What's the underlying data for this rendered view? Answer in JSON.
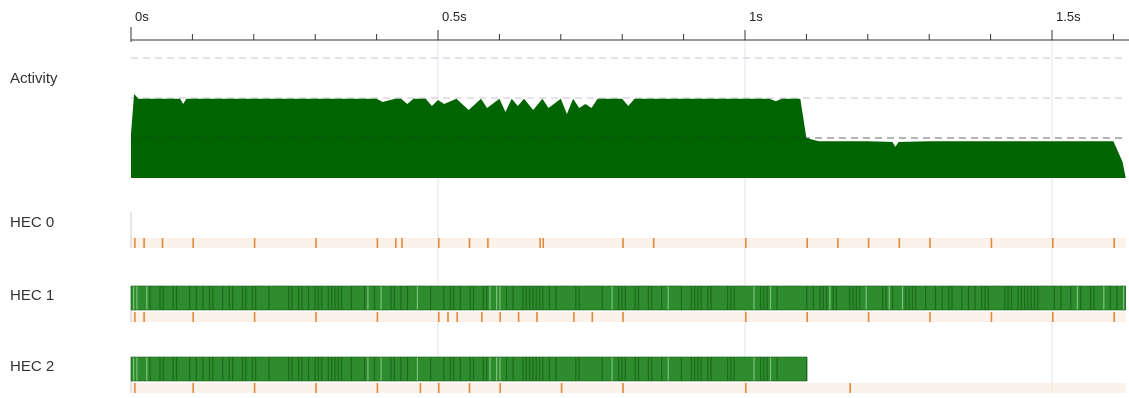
{
  "ruler": {
    "ticks": [
      {
        "label": "0s",
        "t": 0.0
      },
      {
        "label": "0.5s",
        "t": 0.5
      },
      {
        "label": "1s",
        "t": 1.0
      },
      {
        "label": "1.5s",
        "t": 1.5
      }
    ],
    "minor_step_s": 0.1,
    "range_s": [
      0,
      1.62
    ]
  },
  "rows": {
    "activity": {
      "label": "Activity"
    },
    "hec0": {
      "label": "HEC 0"
    },
    "hec1": {
      "label": "HEC 1"
    },
    "hec2": {
      "label": "HEC 2"
    }
  },
  "activity_profile": {
    "max_hecs": 3,
    "points": [
      [
        0.0,
        1.1
      ],
      [
        0.005,
        2.1
      ],
      [
        0.012,
        1.98
      ],
      [
        0.04,
        1.98
      ],
      [
        0.08,
        1.98
      ],
      [
        0.085,
        1.85
      ],
      [
        0.09,
        1.98
      ],
      [
        0.2,
        1.98
      ],
      [
        0.3,
        1.98
      ],
      [
        0.36,
        1.98
      ],
      [
        0.39,
        1.98
      ],
      [
        0.4,
        1.98
      ],
      [
        0.41,
        1.9
      ],
      [
        0.43,
        1.98
      ],
      [
        0.44,
        1.98
      ],
      [
        0.45,
        1.85
      ],
      [
        0.46,
        1.98
      ],
      [
        0.48,
        1.98
      ],
      [
        0.49,
        1.8
      ],
      [
        0.5,
        1.95
      ],
      [
        0.51,
        1.85
      ],
      [
        0.53,
        1.98
      ],
      [
        0.55,
        1.7
      ],
      [
        0.57,
        1.98
      ],
      [
        0.58,
        1.75
      ],
      [
        0.6,
        1.98
      ],
      [
        0.61,
        1.65
      ],
      [
        0.62,
        1.98
      ],
      [
        0.63,
        1.8
      ],
      [
        0.64,
        1.98
      ],
      [
        0.655,
        1.7
      ],
      [
        0.67,
        1.98
      ],
      [
        0.68,
        1.75
      ],
      [
        0.7,
        1.98
      ],
      [
        0.71,
        1.6
      ],
      [
        0.72,
        1.98
      ],
      [
        0.73,
        1.75
      ],
      [
        0.74,
        1.85
      ],
      [
        0.75,
        1.75
      ],
      [
        0.76,
        1.98
      ],
      [
        0.78,
        1.98
      ],
      [
        0.8,
        1.98
      ],
      [
        0.81,
        1.8
      ],
      [
        0.82,
        1.98
      ],
      [
        0.9,
        1.98
      ],
      [
        1.0,
        1.98
      ],
      [
        1.04,
        1.98
      ],
      [
        1.05,
        1.92
      ],
      [
        1.06,
        1.98
      ],
      [
        1.08,
        1.98
      ],
      [
        1.09,
        1.98
      ],
      [
        1.1,
        1.0
      ],
      [
        1.12,
        0.92
      ],
      [
        1.2,
        0.92
      ],
      [
        1.24,
        0.9
      ],
      [
        1.245,
        0.78
      ],
      [
        1.25,
        0.9
      ],
      [
        1.3,
        0.92
      ],
      [
        1.4,
        0.92
      ],
      [
        1.5,
        0.92
      ],
      [
        1.58,
        0.92
      ],
      [
        1.6,
        0.92
      ],
      [
        1.615,
        0.4
      ],
      [
        1.62,
        0.0
      ]
    ]
  },
  "hec_tracks": {
    "hec0": {
      "run_spans": [],
      "gc_marks": [
        0.005,
        0.02,
        0.05,
        0.1,
        0.2,
        0.3,
        0.4,
        0.43,
        0.44,
        0.5,
        0.55,
        0.58,
        0.665,
        0.67,
        0.8,
        0.85,
        1.0,
        1.1,
        1.15,
        1.2,
        1.25,
        1.3,
        1.4,
        1.5,
        1.6
      ]
    },
    "hec1": {
      "run_spans": [
        [
          0.0,
          1.62
        ]
      ],
      "gc_marks": [
        0.005,
        0.02,
        0.1,
        0.2,
        0.3,
        0.4,
        0.5,
        0.515,
        0.53,
        0.57,
        0.6,
        0.63,
        0.66,
        0.72,
        0.75,
        0.8,
        1.0,
        1.1,
        1.2,
        1.3,
        1.4,
        1.5,
        1.6
      ]
    },
    "hec2": {
      "run_spans": [
        [
          0.0,
          1.1
        ]
      ],
      "gc_marks": [
        0.005,
        0.1,
        0.2,
        0.3,
        0.4,
        0.47,
        0.5,
        0.55,
        0.6,
        0.7,
        0.8,
        1.0,
        1.17
      ]
    }
  },
  "colors": {
    "activity_fill": "#006400",
    "run_bar": "#2e8b2e",
    "run_bar_dark": "#1a6b1a",
    "run_bar_light": "#7ac47a",
    "gc_mark": "#e08a3c",
    "gc_mark_faint": "#fbe6d4",
    "gridline": "#e4e4e4",
    "dashed_line": "#c9bfd6",
    "axis": "#333333"
  }
}
